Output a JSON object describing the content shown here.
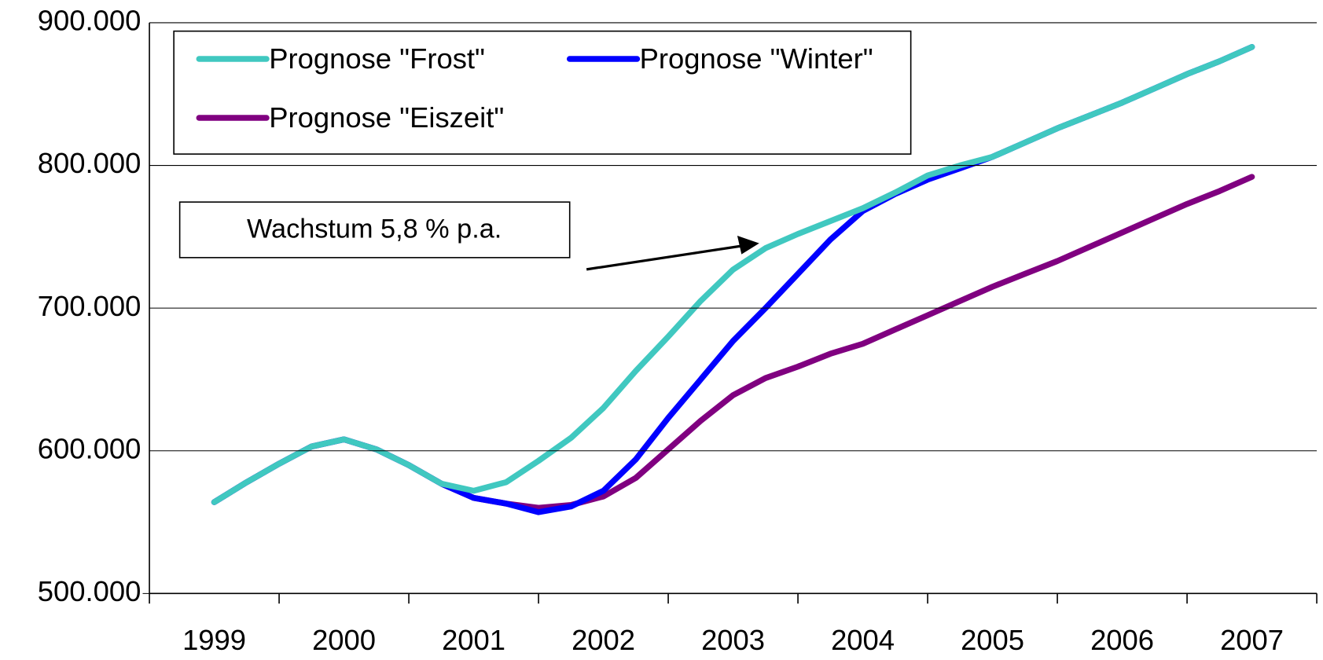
{
  "chart_data": {
    "type": "line",
    "x": [
      1999,
      1999.25,
      1999.5,
      1999.75,
      2000,
      2000.25,
      2000.5,
      2000.75,
      2001,
      2001.25,
      2001.5,
      2001.75,
      2002,
      2002.25,
      2002.5,
      2002.75,
      2003,
      2003.25,
      2003.5,
      2003.75,
      2004,
      2004.25,
      2004.5,
      2004.75,
      2005,
      2005.25,
      2005.5,
      2005.75,
      2006,
      2006.25,
      2006.5,
      2006.75,
      2007
    ],
    "series": [
      {
        "name": "Prognose \"Frost\"",
        "color": "#40c8c0",
        "values": [
          564000,
          578000,
          591000,
          603000,
          608000,
          601000,
          590000,
          577000,
          572000,
          578000,
          593000,
          609000,
          630000,
          656000,
          680000,
          705000,
          727000,
          742000,
          752000,
          761000,
          770000,
          781000,
          793000,
          800000,
          806000,
          816000,
          826000,
          835000,
          844000,
          854000,
          864000,
          873000,
          883000
        ]
      },
      {
        "name": "Prognose \"Winter\"",
        "color": "#0000ff",
        "values": [
          564000,
          578000,
          591000,
          603000,
          608000,
          601000,
          590000,
          577000,
          567000,
          563000,
          557000,
          561000,
          572000,
          594000,
          623000,
          650000,
          677000,
          700000,
          724000,
          748000,
          768000,
          780000,
          790000,
          798000,
          806000,
          816000,
          826000,
          835000,
          844000,
          854000,
          864000,
          873000,
          883000
        ]
      },
      {
        "name": "Prognose \"Eiszeit\"",
        "color": "#800080",
        "values": [
          564000,
          578000,
          591000,
          603000,
          608000,
          601000,
          590000,
          577000,
          567000,
          563000,
          560000,
          562000,
          568000,
          581000,
          601000,
          621000,
          639000,
          651000,
          659000,
          668000,
          675000,
          685000,
          695000,
          705000,
          715000,
          724000,
          733000,
          743000,
          753000,
          763000,
          773000,
          782000,
          792000
        ]
      }
    ],
    "xlim": [
      1998.5,
      2007.5
    ],
    "xticks": [
      1999,
      2000,
      2001,
      2002,
      2003,
      2004,
      2005,
      2006,
      2007
    ],
    "ylim": [
      500000,
      900000
    ],
    "yticks": [
      {
        "value": 500000,
        "label": "500.000"
      },
      {
        "value": 600000,
        "label": "600.000"
      },
      {
        "value": 700000,
        "label": "700.000"
      },
      {
        "value": 800000,
        "label": "800.000"
      },
      {
        "value": 900000,
        "label": "900.000"
      }
    ],
    "grid": true,
    "legend": "upper left",
    "annotation": "Wachstum 5,8 % p.a."
  }
}
